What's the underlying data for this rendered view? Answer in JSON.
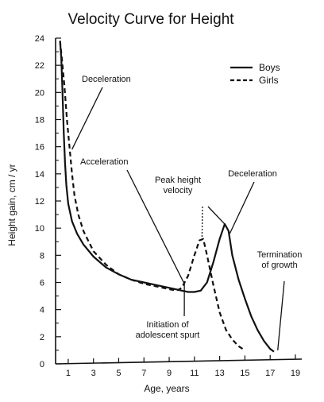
{
  "chart_data": {
    "type": "line",
    "title": "Velocity Curve for Height",
    "xlabel": "Age, years",
    "ylabel": "Height gain, cm / yr",
    "xlim": [
      0,
      19
    ],
    "ylim": [
      0,
      24
    ],
    "x_tick_labels": [
      "1",
      "3",
      "5",
      "7",
      "9",
      "11",
      "13",
      "15",
      "17",
      "19"
    ],
    "x_tick_values": [
      1,
      3,
      5,
      7,
      9,
      11,
      13,
      15,
      17,
      19
    ],
    "y_tick_labels": [
      "0",
      "2",
      "4",
      "6",
      "8",
      "10",
      "12",
      "14",
      "16",
      "18",
      "20",
      "22",
      "24"
    ],
    "y_tick_values": [
      0,
      2,
      4,
      6,
      8,
      10,
      12,
      14,
      16,
      18,
      20,
      22,
      24
    ],
    "legend_position": "top-right",
    "series": [
      {
        "name": "Boys",
        "style": "solid",
        "x": [
          0.35,
          0.45,
          0.55,
          0.65,
          0.75,
          0.85,
          1.0,
          1.3,
          1.7,
          2.2,
          3.0,
          4.0,
          5.0,
          6.0,
          7.0,
          8.0,
          9.0,
          10.0,
          10.5,
          11.0,
          11.5,
          12.0,
          12.5,
          13.0,
          13.4,
          13.7,
          14.0,
          14.5,
          15.0,
          15.5,
          16.0,
          16.5,
          17.0,
          17.3
        ],
        "y": [
          23.8,
          22.5,
          20.0,
          17.0,
          14.8,
          13.2,
          11.8,
          10.5,
          9.6,
          8.8,
          7.9,
          7.1,
          6.6,
          6.2,
          6.0,
          5.8,
          5.6,
          5.4,
          5.3,
          5.3,
          5.4,
          6.0,
          7.5,
          9.2,
          10.3,
          9.8,
          8.0,
          6.2,
          4.8,
          3.5,
          2.5,
          1.7,
          1.1,
          0.9
        ]
      },
      {
        "name": "Girls",
        "style": "dashed",
        "x": [
          0.35,
          0.5,
          0.7,
          0.9,
          1.1,
          1.3,
          1.5,
          1.8,
          2.2,
          3.0,
          4.0,
          5.0,
          6.0,
          7.0,
          8.0,
          9.0,
          9.6,
          10.0,
          10.5,
          11.0,
          11.4,
          11.7,
          12.0,
          12.5,
          13.0,
          13.5,
          14.0,
          14.5,
          15.0
        ],
        "y": [
          23.8,
          22.5,
          20.5,
          18.0,
          16.0,
          14.0,
          12.4,
          11.0,
          9.8,
          8.3,
          7.3,
          6.6,
          6.2,
          5.9,
          5.7,
          5.5,
          5.4,
          5.6,
          6.5,
          8.0,
          9.1,
          9.2,
          8.0,
          5.8,
          3.8,
          2.5,
          1.8,
          1.3,
          1.0
        ]
      }
    ],
    "annotations": [
      {
        "lines": [
          "Deceleration"
        ],
        "target": [
          1.3,
          15.8
        ]
      },
      {
        "lines": [
          "Acceleration"
        ],
        "target": [
          10.2,
          5.9
        ]
      },
      {
        "lines": [
          "Peak height",
          "velocity"
        ],
        "target": [
          11.6,
          9.3
        ],
        "target2": [
          13.4,
          10.3
        ]
      },
      {
        "lines": [
          "Deceleration"
        ],
        "target": [
          13.8,
          9.6
        ]
      },
      {
        "lines": [
          "Termination",
          "of growth"
        ],
        "target": [
          17.6,
          1.0
        ]
      },
      {
        "lines": [
          "Initiation of",
          "adolescent spurt"
        ],
        "target": [
          10.2,
          5.6
        ]
      }
    ]
  }
}
